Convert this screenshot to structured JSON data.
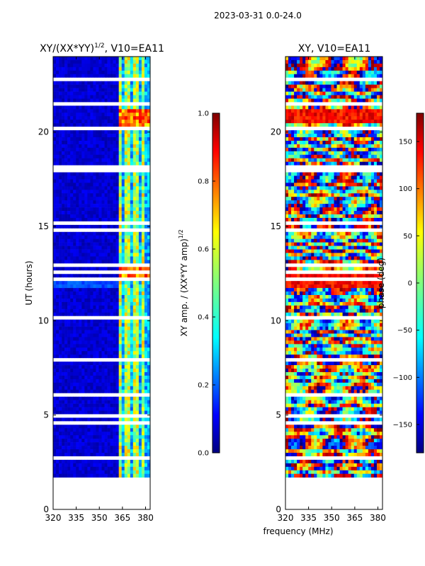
{
  "figure": {
    "suptitle": "2023-03-31 0.0-24.0",
    "xlabel_shared": "frequency (MHz)"
  },
  "chart_data": [
    {
      "type": "heatmap",
      "title_main": "XY/(XX*YY)",
      "title_exp": "1/2",
      "title_tail": ", V10=EA11",
      "ylabel": "UT (hours)",
      "xlim": [
        320,
        383
      ],
      "ylim": [
        0,
        24
      ],
      "xticks": [
        320,
        335,
        350,
        365,
        380
      ],
      "yticks": [
        0,
        5,
        10,
        15,
        20
      ],
      "data_start_hour": 1.7,
      "data_end_hour": 24.0,
      "colormap": "jet",
      "colorbar": {
        "label": "XY amp. / (XX*YY amp)",
        "label_exp": "1/2",
        "range": [
          0.0,
          1.0
        ],
        "ticks": [
          "0.0",
          "0.2",
          "0.4",
          "0.6",
          "0.8",
          "1.0"
        ]
      }
    },
    {
      "type": "heatmap",
      "title": "XY, V10=EA11",
      "ylabel": "",
      "xlim": [
        320,
        383
      ],
      "ylim": [
        0,
        24
      ],
      "xticks": [
        320,
        335,
        350,
        365,
        380
      ],
      "yticks": [
        0,
        5,
        10,
        15,
        20
      ],
      "data_start_hour": 1.7,
      "data_end_hour": 24.0,
      "colormap": "jet",
      "colorbar": {
        "label": "phase (deg)",
        "range": [
          -180,
          180
        ],
        "ticks": [
          "−150",
          "−100",
          "−50",
          "0",
          "50",
          "100",
          "150"
        ]
      }
    }
  ],
  "colors": {
    "jet": [
      "#00007f",
      "#0000ff",
      "#007fff",
      "#00ffff",
      "#7fff7f",
      "#ffff00",
      "#ff7f00",
      "#ff0000",
      "#7f0000"
    ]
  }
}
